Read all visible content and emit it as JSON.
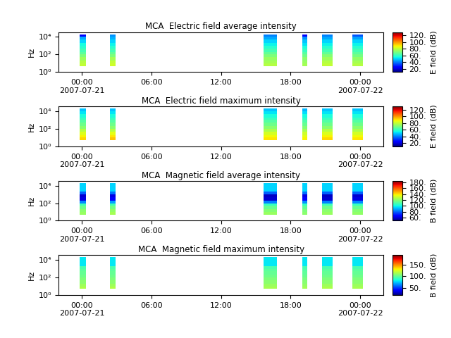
{
  "chart_data": [
    {
      "type": "heatmap",
      "title": "MCA  Electric field average intensity",
      "y_label": "Hz",
      "colorbar_label": "E field (dB)",
      "log": "y",
      "xlim": [
        -2,
        26
      ],
      "xticks": [
        {
          "value": 0,
          "label": "00:00\n2007-07-21"
        },
        {
          "value": 6,
          "label": "06:00"
        },
        {
          "value": 12,
          "label": "12:00"
        },
        {
          "value": 18,
          "label": "18:00"
        },
        {
          "value": 24,
          "label": "00:00\n2007-07-22"
        }
      ],
      "ylim": [
        1,
        35000
      ],
      "yticks": [
        {
          "value": 1,
          "label": "10⁰"
        },
        {
          "value": 100,
          "label": "10²"
        },
        {
          "value": 10000,
          "label": "10⁴"
        }
      ],
      "segments": [
        [
          -0.2,
          0.35
        ],
        [
          2.4,
          2.9
        ],
        [
          15.7,
          16.8
        ],
        [
          19.0,
          19.45
        ],
        [
          20.7,
          21.6
        ],
        [
          23.3,
          24.25
        ]
      ],
      "freq_edges": [
        5,
        10,
        20,
        50,
        100,
        200,
        500,
        1000,
        2000,
        5000,
        10000,
        20000
      ],
      "cells": [
        [
          80,
          78,
          75,
          70,
          65,
          62,
          58,
          55,
          50,
          45,
          25
        ],
        [
          82,
          80,
          76,
          70,
          66,
          62,
          58,
          54,
          50,
          46,
          42
        ],
        [
          78,
          76,
          74,
          70,
          66,
          62,
          58,
          54,
          50,
          45,
          40
        ],
        [
          76,
          74,
          72,
          68,
          64,
          60,
          56,
          52,
          48,
          42,
          25
        ],
        [
          80,
          78,
          75,
          71,
          66,
          62,
          58,
          54,
          50,
          45,
          40
        ],
        [
          78,
          76,
          73,
          69,
          65,
          62,
          58,
          54,
          50,
          44,
          35
        ]
      ],
      "colorbar_range": [
        10,
        130
      ],
      "colorbar_ticks": [
        {
          "value": 20,
          "label": "20."
        },
        {
          "value": 40,
          "label": "40."
        },
        {
          "value": 60,
          "label": "60."
        },
        {
          "value": 80,
          "label": "80."
        },
        {
          "value": 100,
          "label": "100."
        },
        {
          "value": 120,
          "label": "120."
        }
      ]
    },
    {
      "type": "heatmap",
      "title": "MCA  Electric field maximum intensity",
      "y_label": "Hz",
      "colorbar_label": "E field (dB)",
      "log": "y",
      "xlim": [
        -2,
        26
      ],
      "xticks": [
        {
          "value": 0,
          "label": "00:00\n2007-07-21"
        },
        {
          "value": 6,
          "label": "06:00"
        },
        {
          "value": 12,
          "label": "12:00"
        },
        {
          "value": 18,
          "label": "18:00"
        },
        {
          "value": 24,
          "label": "00:00\n2007-07-22"
        }
      ],
      "ylim": [
        1,
        35000
      ],
      "yticks": [
        {
          "value": 1,
          "label": "10⁰"
        },
        {
          "value": 100,
          "label": "10²"
        },
        {
          "value": 10000,
          "label": "10⁴"
        }
      ],
      "segments": [
        [
          -0.2,
          0.35
        ],
        [
          2.4,
          2.9
        ],
        [
          15.7,
          16.8
        ],
        [
          19.0,
          19.45
        ],
        [
          20.7,
          21.6
        ],
        [
          23.3,
          24.25
        ]
      ],
      "freq_edges": [
        5,
        10,
        20,
        50,
        100,
        200,
        500,
        1000,
        2000,
        5000,
        10000,
        20000
      ],
      "cells": [
        [
          92,
          88,
          84,
          78,
          72,
          68,
          64,
          60,
          56,
          52,
          48
        ],
        [
          94,
          90,
          85,
          78,
          72,
          68,
          64,
          60,
          56,
          52,
          48
        ],
        [
          90,
          87,
          83,
          77,
          72,
          68,
          64,
          60,
          56,
          52,
          48
        ],
        [
          88,
          85,
          82,
          76,
          71,
          67,
          63,
          59,
          55,
          51,
          47
        ],
        [
          92,
          88,
          84,
          78,
          72,
          68,
          64,
          60,
          56,
          52,
          48
        ],
        [
          90,
          87,
          83,
          77,
          72,
          68,
          64,
          60,
          56,
          52,
          48
        ]
      ],
      "colorbar_range": [
        10,
        130
      ],
      "colorbar_ticks": [
        {
          "value": 20,
          "label": "20."
        },
        {
          "value": 40,
          "label": "40."
        },
        {
          "value": 60,
          "label": "60."
        },
        {
          "value": 80,
          "label": "80."
        },
        {
          "value": 100,
          "label": "100."
        },
        {
          "value": 120,
          "label": "120."
        }
      ]
    },
    {
      "type": "heatmap",
      "title": "MCA  Magnetic field average intensity",
      "y_label": "Hz",
      "colorbar_label": "B field (dB)",
      "log": "y",
      "xlim": [
        -2,
        26
      ],
      "xticks": [
        {
          "value": 0,
          "label": "00:00\n2007-07-21"
        },
        {
          "value": 6,
          "label": "06:00"
        },
        {
          "value": 12,
          "label": "12:00"
        },
        {
          "value": 18,
          "label": "18:00"
        },
        {
          "value": 24,
          "label": "00:00\n2007-07-22"
        }
      ],
      "ylim": [
        1,
        35000
      ],
      "yticks": [
        {
          "value": 1,
          "label": "10⁰"
        },
        {
          "value": 100,
          "label": "10²"
        },
        {
          "value": 10000,
          "label": "10⁴"
        }
      ],
      "segments": [
        [
          -0.2,
          0.35
        ],
        [
          2.4,
          2.9
        ],
        [
          15.7,
          16.8
        ],
        [
          19.0,
          19.45
        ],
        [
          20.7,
          21.6
        ],
        [
          23.3,
          24.25
        ]
      ],
      "freq_edges": [
        5,
        10,
        20,
        50,
        100,
        200,
        500,
        1000,
        2000,
        5000,
        10000,
        20000
      ],
      "cells": [
        [
          122,
          120,
          115,
          108,
          85,
          62,
          60,
          80,
          95,
          95,
          95
        ],
        [
          124,
          121,
          116,
          108,
          88,
          66,
          62,
          82,
          95,
          95,
          95
        ],
        [
          122,
          119,
          114,
          106,
          84,
          60,
          58,
          80,
          95,
          95,
          95
        ],
        [
          120,
          118,
          113,
          105,
          86,
          65,
          62,
          82,
          95,
          95,
          95
        ],
        [
          122,
          120,
          115,
          107,
          84,
          60,
          58,
          80,
          95,
          95,
          95
        ],
        [
          121,
          119,
          114,
          106,
          85,
          62,
          60,
          80,
          95,
          95,
          95
        ]
      ],
      "colorbar_range": [
        50,
        185
      ],
      "colorbar_ticks": [
        {
          "value": 60,
          "label": "60."
        },
        {
          "value": 80,
          "label": "80."
        },
        {
          "value": 100,
          "label": "100."
        },
        {
          "value": 120,
          "label": "120."
        },
        {
          "value": 140,
          "label": "140."
        },
        {
          "value": 160,
          "label": "160."
        },
        {
          "value": 180,
          "label": "180."
        }
      ]
    },
    {
      "type": "heatmap",
      "title": "MCA  Magnetic field maximum intensity",
      "y_label": "Hz",
      "colorbar_label": "B field (dB)",
      "log": "y",
      "xlim": [
        -2,
        26
      ],
      "xticks": [
        {
          "value": 0,
          "label": "00:00\n2007-07-21"
        },
        {
          "value": 6,
          "label": "06:00"
        },
        {
          "value": 12,
          "label": "12:00"
        },
        {
          "value": 18,
          "label": "18:00"
        },
        {
          "value": 24,
          "label": "00:00\n2007-07-22"
        }
      ],
      "ylim": [
        1,
        35000
      ],
      "yticks": [
        {
          "value": 1,
          "label": "10⁰"
        },
        {
          "value": 100,
          "label": "10²"
        },
        {
          "value": 10000,
          "label": "10⁴"
        }
      ],
      "segments": [
        [
          -0.2,
          0.35
        ],
        [
          2.4,
          2.9
        ],
        [
          15.7,
          16.8
        ],
        [
          19.0,
          19.45
        ],
        [
          20.7,
          21.6
        ],
        [
          23.3,
          24.25
        ]
      ],
      "freq_edges": [
        5,
        10,
        20,
        50,
        100,
        200,
        500,
        1000,
        2000,
        5000,
        10000,
        20000
      ],
      "cells": [
        [
          115,
          112,
          108,
          105,
          102,
          100,
          98,
          95,
          80,
          80,
          80
        ],
        [
          116,
          112,
          108,
          105,
          102,
          100,
          98,
          95,
          80,
          80,
          80
        ],
        [
          114,
          111,
          108,
          105,
          102,
          100,
          98,
          95,
          80,
          80,
          80
        ],
        [
          113,
          110,
          107,
          104,
          101,
          99,
          97,
          94,
          80,
          80,
          80
        ],
        [
          115,
          112,
          108,
          105,
          102,
          100,
          98,
          95,
          80,
          80,
          80
        ],
        [
          114,
          111,
          108,
          105,
          102,
          100,
          98,
          95,
          80,
          80,
          80
        ]
      ],
      "colorbar_range": [
        20,
        190
      ],
      "colorbar_ticks": [
        {
          "value": 50,
          "label": "50."
        },
        {
          "value": 100,
          "label": "100."
        },
        {
          "value": 150,
          "label": "150."
        }
      ]
    }
  ]
}
